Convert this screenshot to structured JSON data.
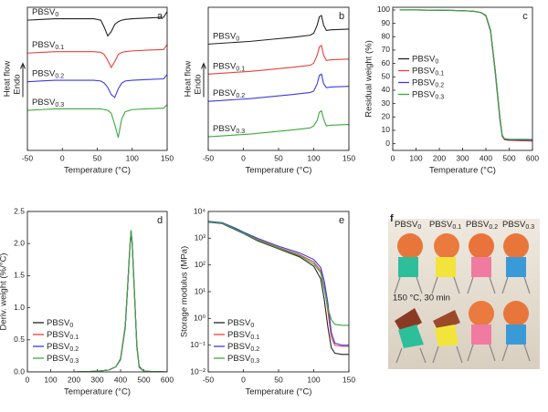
{
  "chart_data": [
    {
      "type": "line",
      "panel_label": "a",
      "xlabel": "Temperature (°C)",
      "ylabel": "Heat flow",
      "y_arrow_label": "Endo",
      "xlim": [
        -50,
        150
      ],
      "xticks": [
        -50,
        0,
        50,
        100,
        150
      ],
      "ylim": [
        0,
        10
      ],
      "legend": "curve",
      "x": [
        -50,
        -30,
        -10,
        10,
        30,
        45,
        55,
        60,
        65,
        70,
        75,
        80,
        85,
        90,
        100,
        120,
        145,
        150
      ],
      "series": [
        {
          "name": "PBSV",
          "subscript": "0",
          "color": "#222222",
          "values": [
            9.1,
            9.15,
            9.2,
            9.2,
            9.2,
            9.2,
            9.1,
            8.6,
            8.0,
            8.3,
            8.8,
            9.0,
            9.1,
            9.15,
            9.2,
            9.25,
            9.3,
            9.7
          ]
        },
        {
          "name": "PBSV",
          "subscript": "0.1",
          "color": "#e8403a",
          "values": [
            6.8,
            6.85,
            6.9,
            6.9,
            6.9,
            6.9,
            6.85,
            6.7,
            6.3,
            5.8,
            6.2,
            6.7,
            6.85,
            6.9,
            6.95,
            7.0,
            7.05,
            7.4
          ]
        },
        {
          "name": "PBSV",
          "subscript": "0.2",
          "color": "#3a3ae8",
          "values": [
            4.8,
            4.85,
            4.9,
            4.9,
            4.9,
            4.9,
            4.85,
            4.7,
            4.4,
            3.9,
            3.7,
            4.3,
            4.7,
            4.85,
            4.9,
            4.95,
            5.0,
            5.3
          ]
        },
        {
          "name": "PBSV",
          "subscript": "0.3",
          "color": "#3aaa3a",
          "values": [
            2.8,
            2.85,
            2.9,
            2.9,
            2.9,
            2.9,
            2.9,
            2.85,
            2.8,
            2.6,
            1.8,
            0.9,
            2.2,
            2.7,
            2.85,
            2.9,
            2.95,
            3.2
          ]
        }
      ]
    },
    {
      "type": "line",
      "panel_label": "b",
      "xlabel": "Temperature (°C)",
      "ylabel": "Heat flow",
      "y_arrow_label": "Endo",
      "xlim": [
        -50,
        150
      ],
      "xticks": [
        -50,
        0,
        50,
        100,
        150
      ],
      "ylim": [
        0,
        10.5
      ],
      "legend": "curve",
      "x": [
        -50,
        -20,
        10,
        40,
        70,
        95,
        100,
        105,
        108,
        111,
        114,
        118,
        125,
        150
      ],
      "series": [
        {
          "name": "PBSV",
          "subscript": "0",
          "color": "#222222",
          "values": [
            7.8,
            7.9,
            8.0,
            8.15,
            8.3,
            8.45,
            8.6,
            9.2,
            9.8,
            9.9,
            9.2,
            8.8,
            8.85,
            8.9
          ]
        },
        {
          "name": "PBSV",
          "subscript": "0.1",
          "color": "#e8403a",
          "values": [
            5.6,
            5.7,
            5.8,
            5.95,
            6.1,
            6.25,
            6.4,
            7.0,
            7.6,
            7.7,
            7.0,
            6.6,
            6.65,
            6.7
          ]
        },
        {
          "name": "PBSV",
          "subscript": "0.2",
          "color": "#3a3ae8",
          "values": [
            3.6,
            3.7,
            3.8,
            3.95,
            4.1,
            4.25,
            4.35,
            4.9,
            5.5,
            5.6,
            4.9,
            4.6,
            4.65,
            4.7
          ]
        },
        {
          "name": "PBSV",
          "subscript": "0.3",
          "color": "#3aaa3a",
          "values": [
            1.0,
            1.1,
            1.2,
            1.35,
            1.5,
            1.65,
            1.8,
            2.2,
            2.8,
            2.9,
            2.3,
            1.8,
            1.85,
            1.9
          ]
        }
      ]
    },
    {
      "type": "line",
      "panel_label": "c",
      "xlabel": "Temperature (°C)",
      "ylabel": "Residual weight (%)",
      "xlim": [
        0,
        600
      ],
      "xticks": [
        0,
        100,
        200,
        300,
        400,
        500,
        600
      ],
      "ylim": [
        -5,
        102
      ],
      "yticks": [
        0,
        10,
        20,
        30,
        40,
        50,
        60,
        70,
        80,
        90,
        100
      ],
      "legend": "center left",
      "x": [
        30,
        100,
        200,
        300,
        350,
        380,
        400,
        420,
        440,
        460,
        470,
        480,
        500,
        600
      ],
      "series": [
        {
          "name": "PBSV",
          "subscript": "0",
          "color": "#222222",
          "values": [
            100,
            100,
            99.8,
            99.5,
            99,
            98,
            96,
            85,
            55,
            20,
            6,
            3,
            2.5,
            2
          ]
        },
        {
          "name": "PBSV",
          "subscript": "0.1",
          "color": "#e8403a",
          "values": [
            100,
            100,
            99.8,
            99.5,
            99,
            98,
            95.5,
            84,
            53,
            18,
            5.5,
            3,
            2.6,
            2.2
          ]
        },
        {
          "name": "PBSV",
          "subscript": "0.2",
          "color": "#3a3ae8",
          "values": [
            100,
            100,
            99.8,
            99.5,
            99,
            98,
            95.8,
            84.5,
            54,
            19,
            6,
            3.5,
            3,
            2.8
          ]
        },
        {
          "name": "PBSV",
          "subscript": "0.3",
          "color": "#3aaa3a",
          "values": [
            100,
            100,
            99.8,
            99.5,
            99,
            98,
            96,
            85,
            55,
            20,
            6.5,
            3.8,
            3.4,
            3.2
          ]
        }
      ]
    },
    {
      "type": "line",
      "panel_label": "d",
      "xlabel": "Temperature (°C)",
      "ylabel": "Deriv. weight (%/°C)",
      "xlim": [
        0,
        600
      ],
      "xticks": [
        0,
        100,
        200,
        300,
        400,
        500,
        600
      ],
      "ylim": [
        0,
        2.5
      ],
      "yticks": [
        {
          "value": 0,
          "label": "0.0"
        },
        0.5,
        {
          "value": 1,
          "label": "1.0"
        },
        1.5,
        {
          "value": 2,
          "label": "2.0"
        },
        2.5
      ],
      "legend": "lower left",
      "x": [
        0,
        100,
        200,
        300,
        350,
        380,
        400,
        420,
        430,
        440,
        445,
        450,
        460,
        470,
        480,
        500,
        600
      ],
      "series": [
        {
          "name": "PBSV",
          "subscript": "0",
          "color": "#222222",
          "values": [
            0,
            0,
            0,
            0.01,
            0.03,
            0.08,
            0.2,
            0.7,
            1.3,
            1.95,
            2.2,
            2.0,
            1.2,
            0.4,
            0.08,
            0.01,
            0
          ]
        },
        {
          "name": "PBSV",
          "subscript": "0.1",
          "color": "#e8403a",
          "values": [
            0,
            0,
            0,
            0.01,
            0.03,
            0.08,
            0.21,
            0.72,
            1.32,
            1.97,
            2.18,
            1.98,
            1.18,
            0.38,
            0.07,
            0.01,
            0
          ]
        },
        {
          "name": "PBSV",
          "subscript": "0.2",
          "color": "#3a3ae8",
          "values": [
            0,
            0,
            0,
            0.01,
            0.03,
            0.08,
            0.19,
            0.68,
            1.28,
            1.93,
            2.19,
            2.02,
            1.22,
            0.41,
            0.08,
            0.01,
            0
          ]
        },
        {
          "name": "PBSV",
          "subscript": "0.3",
          "color": "#3aaa3a",
          "values": [
            0,
            0,
            0,
            0.01,
            0.03,
            0.08,
            0.2,
            0.7,
            1.3,
            1.94,
            2.21,
            2.01,
            1.21,
            0.4,
            0.09,
            0.01,
            0
          ]
        }
      ]
    },
    {
      "type": "line",
      "panel_label": "e",
      "xlabel": "Temperature (°C)",
      "ylabel": "Storage modulus (MPa)",
      "log_y": true,
      "xlim": [
        -50,
        150
      ],
      "xticks": [
        -50,
        0,
        50,
        100,
        150
      ],
      "ylim": [
        0.01,
        10000
      ],
      "yticks": [
        {
          "value": 0.01,
          "label": "10⁻²"
        },
        {
          "value": 0.1,
          "label": "10⁻¹"
        },
        {
          "value": 1,
          "label": "10⁰"
        },
        {
          "value": 10,
          "label": "10¹"
        },
        {
          "value": 100,
          "label": "10²"
        },
        {
          "value": 1000,
          "label": "10³"
        },
        {
          "value": 10000,
          "label": "10⁴"
        }
      ],
      "legend": "lower left",
      "x": [
        -50,
        -30,
        -10,
        0,
        20,
        50,
        80,
        100,
        110,
        115,
        120,
        125,
        130,
        140,
        150
      ],
      "series": [
        {
          "name": "PBSV",
          "subscript": "0",
          "color": "#222222",
          "values": [
            4000,
            3500,
            2000,
            1500,
            800,
            400,
            200,
            90,
            30,
            5,
            0.5,
            0.08,
            0.05,
            0.045,
            0.045
          ]
        },
        {
          "name": "PBSV",
          "subscript": "0.1",
          "color": "#e8403a",
          "values": [
            4200,
            3700,
            2200,
            1600,
            900,
            450,
            240,
            130,
            60,
            15,
            2,
            0.2,
            0.1,
            0.09,
            0.09
          ]
        },
        {
          "name": "PBSV",
          "subscript": "0.2",
          "color": "#3a3ae8",
          "values": [
            4300,
            3800,
            2300,
            1700,
            1000,
            500,
            280,
            160,
            80,
            25,
            4,
            0.3,
            0.12,
            0.1,
            0.1
          ]
        },
        {
          "name": "PBSV",
          "subscript": "0.3",
          "color": "#3aaa3a",
          "values": [
            4100,
            3600,
            2100,
            1550,
            850,
            420,
            220,
            110,
            50,
            12,
            2.5,
            0.9,
            0.6,
            0.55,
            0.55
          ]
        }
      ]
    }
  ],
  "photo": {
    "panel_label": "f",
    "caption": "150 °C, 30 min",
    "labels": [
      {
        "name": "PBSV",
        "subscript": "0"
      },
      {
        "name": "PBSV",
        "subscript": "0.1"
      },
      {
        "name": "PBSV",
        "subscript": "0.2"
      },
      {
        "name": "PBSV",
        "subscript": "0.3"
      }
    ]
  }
}
